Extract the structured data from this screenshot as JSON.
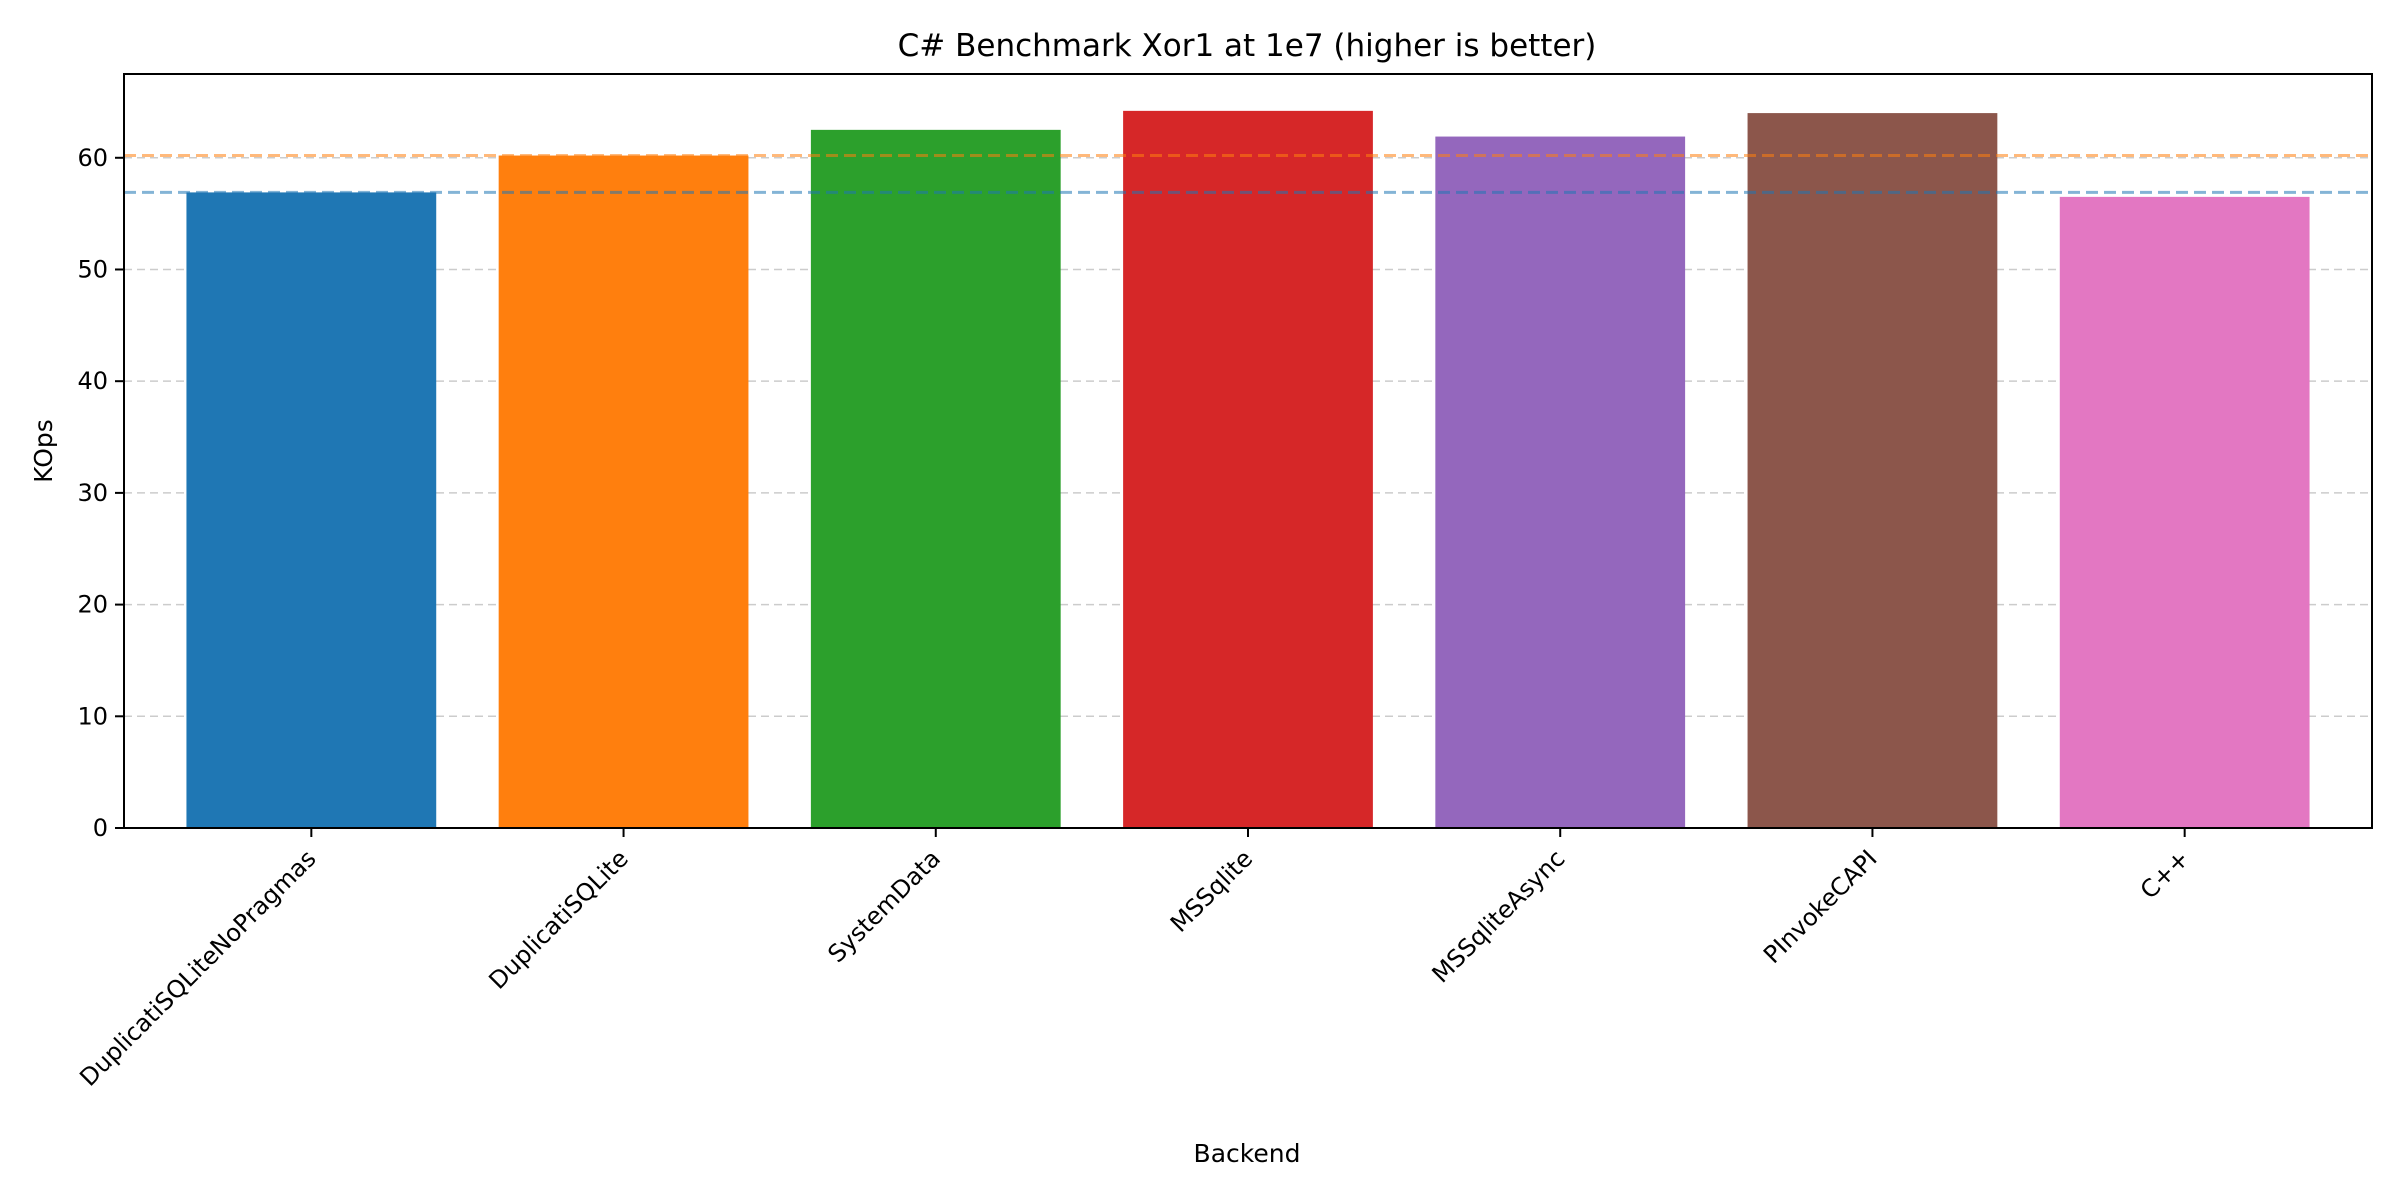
{
  "chart_data": {
    "type": "bar",
    "title": "C# Benchmark Xor1 at 1e7 (higher is better)",
    "xlabel": "Backend",
    "ylabel": "KOps",
    "categories": [
      "DuplicatiSQLiteNoPragmas",
      "DuplicatiSQLite",
      "SystemData",
      "MSSqlite",
      "MSSqliteAsync",
      "PInvokeCAPI",
      "C++"
    ],
    "values": [
      56.9,
      60.2,
      62.5,
      64.2,
      61.9,
      64.0,
      56.5
    ],
    "colors": [
      "#1f77b4",
      "#ff7f0e",
      "#2ca02c",
      "#d62728",
      "#9467bd",
      "#8c564b",
      "#e377c2"
    ],
    "ylim": [
      0,
      67.5
    ],
    "yticks": [
      0,
      10,
      20,
      30,
      40,
      50,
      60
    ],
    "grid": "y-dashed",
    "reference_lines": [
      {
        "value": 56.9,
        "color": "#1f77b4",
        "style": "dashed"
      },
      {
        "value": 60.2,
        "color": "#ff7f0e",
        "style": "dashed"
      }
    ]
  }
}
